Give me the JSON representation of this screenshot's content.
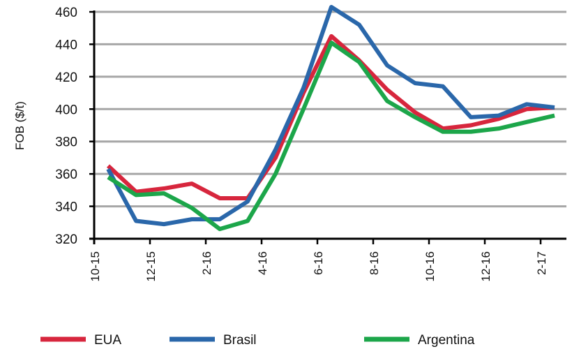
{
  "chart_data": {
    "type": "line",
    "title": "",
    "xlabel": "",
    "ylabel": "FOB ($/t)",
    "ylim": [
      320,
      460
    ],
    "yticks": [
      320,
      340,
      360,
      380,
      400,
      420,
      440,
      460
    ],
    "grid": true,
    "legend_position": "bottom",
    "x": [
      "10-15",
      "11-15",
      "12-15",
      "1-16",
      "2-16",
      "3-16",
      "4-16",
      "5-16",
      "6-16",
      "7-16",
      "8-16",
      "9-16",
      "10-16",
      "11-16",
      "12-16",
      "1-17",
      "2-17"
    ],
    "xtick_labels": [
      "10-15",
      "12-15",
      "2-16",
      "4-16",
      "6-16",
      "8-16",
      "10-16",
      "12-16",
      "2-17"
    ],
    "series": [
      {
        "name": "EUA",
        "color": "#d7263d",
        "values": [
          365,
          349,
          351,
          354,
          345,
          345,
          370,
          410,
          445,
          430,
          412,
          398,
          388,
          390,
          394,
          400,
          401
        ]
      },
      {
        "name": "Brasil",
        "color": "#2a67aa",
        "values": [
          363,
          331,
          329,
          332,
          332,
          343,
          375,
          413,
          463,
          452,
          427,
          416,
          414,
          395,
          396,
          403,
          401
        ]
      },
      {
        "name": "Argentina",
        "color": "#1ca64a",
        "values": [
          358,
          347,
          348,
          339,
          326,
          331,
          360,
          400,
          441,
          429,
          405,
          395,
          386,
          386,
          388,
          392,
          396
        ]
      }
    ]
  }
}
